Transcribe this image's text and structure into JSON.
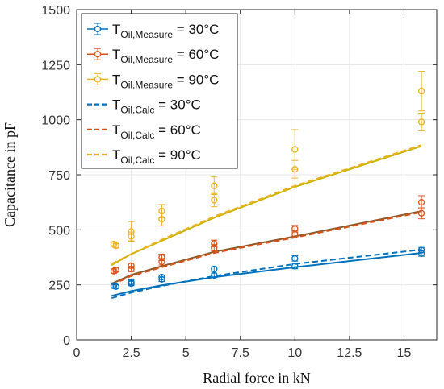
{
  "chart_data": {
    "type": "scatter",
    "xlabel": "Radial force in kN",
    "ylabel": "Capacitance in pF",
    "xlim": [
      0,
      16.5
    ],
    "ylim": [
      0,
      1500
    ],
    "xticks": [
      0,
      2.5,
      5,
      7.5,
      10,
      12.5,
      15
    ],
    "xtick_labels": [
      "0",
      "2.5",
      "5",
      "7.5",
      "10",
      "12.5",
      "15"
    ],
    "yticks": [
      0,
      250,
      500,
      750,
      1000,
      1250,
      1500
    ],
    "ytick_labels": [
      "0",
      "250",
      "500",
      "750",
      "1000",
      "1250",
      "1500"
    ],
    "grid": true,
    "legend_position": "top-left",
    "measure_series": [
      {
        "name_main": "T",
        "name_sub": "Oil,Measure",
        "name_suffix": " = 30°C",
        "color": "#0072BD",
        "points": [
          {
            "x": 1.7,
            "y": 245,
            "err": 8
          },
          {
            "x": 1.8,
            "y": 242,
            "err": 8
          },
          {
            "x": 2.5,
            "y": 262,
            "err": 10
          },
          {
            "x": 2.5,
            "y": 256,
            "err": 10
          },
          {
            "x": 3.9,
            "y": 285,
            "err": 10
          },
          {
            "x": 3.9,
            "y": 275,
            "err": 10
          },
          {
            "x": 6.3,
            "y": 322,
            "err": 10
          },
          {
            "x": 6.3,
            "y": 293,
            "err": 10
          },
          {
            "x": 10.0,
            "y": 370,
            "err": 12
          },
          {
            "x": 10.0,
            "y": 335,
            "err": 12
          },
          {
            "x": 15.8,
            "y": 408,
            "err": 12
          },
          {
            "x": 15.8,
            "y": 392,
            "err": 12
          }
        ]
      },
      {
        "name_main": "T",
        "name_sub": "Oil,Measure",
        "name_suffix": " = 60°C",
        "color": "#D95319",
        "points": [
          {
            "x": 1.7,
            "y": 312,
            "err": 10
          },
          {
            "x": 1.8,
            "y": 318,
            "err": 10
          },
          {
            "x": 2.5,
            "y": 337,
            "err": 12
          },
          {
            "x": 2.5,
            "y": 322,
            "err": 12
          },
          {
            "x": 3.9,
            "y": 375,
            "err": 15
          },
          {
            "x": 3.9,
            "y": 355,
            "err": 15
          },
          {
            "x": 6.3,
            "y": 438,
            "err": 15
          },
          {
            "x": 6.3,
            "y": 418,
            "err": 15
          },
          {
            "x": 10.0,
            "y": 505,
            "err": 15
          },
          {
            "x": 10.0,
            "y": 480,
            "err": 15
          },
          {
            "x": 15.8,
            "y": 625,
            "err": 30
          },
          {
            "x": 15.8,
            "y": 575,
            "err": 25
          }
        ]
      },
      {
        "name_main": "T",
        "name_sub": "Oil,Measure",
        "name_suffix": " = 90°C",
        "color": "#EDB120",
        "points": [
          {
            "x": 1.7,
            "y": 435,
            "err": 10
          },
          {
            "x": 1.8,
            "y": 428,
            "err": 10
          },
          {
            "x": 2.5,
            "y": 492,
            "err": 45
          },
          {
            "x": 2.5,
            "y": 470,
            "err": 20
          },
          {
            "x": 3.9,
            "y": 585,
            "err": 30
          },
          {
            "x": 3.9,
            "y": 548,
            "err": 30
          },
          {
            "x": 6.3,
            "y": 700,
            "err": 40
          },
          {
            "x": 6.3,
            "y": 635,
            "err": 30
          },
          {
            "x": 10.0,
            "y": 865,
            "err": 90
          },
          {
            "x": 10.0,
            "y": 775,
            "err": 40
          },
          {
            "x": 15.8,
            "y": 1130,
            "err": 90
          },
          {
            "x": 15.8,
            "y": 990,
            "err": 40
          }
        ]
      }
    ],
    "calc_series": [
      {
        "name_main": "T",
        "name_sub": "Oil,Calc",
        "name_suffix": " = 30°C",
        "color": "#0072BD",
        "x": [
          1.6,
          2.5,
          3.9,
          6.3,
          10.0,
          15.8
        ],
        "y": [
          190,
          215,
          245,
          290,
          345,
          410
        ]
      },
      {
        "name_main": "T",
        "name_sub": "Oil,Calc",
        "name_suffix": " = 60°C",
        "color": "#D95319",
        "x": [
          1.6,
          2.5,
          3.9,
          6.3,
          10.0,
          15.8
        ],
        "y": [
          250,
          290,
          330,
          395,
          465,
          580
        ]
      },
      {
        "name_main": "T",
        "name_sub": "Oil,Calc",
        "name_suffix": " = 90°C",
        "color": "#EDB120",
        "x": [
          1.6,
          2.5,
          3.9,
          6.3,
          10.0,
          15.8
        ],
        "y": [
          345,
          390,
          455,
          560,
          700,
          885
        ]
      }
    ],
    "fit_series": [
      {
        "color": "#0072BD",
        "x": [
          1.6,
          2.5,
          3.9,
          6.3,
          10.0,
          15.8
        ],
        "y": [
          200,
          222,
          248,
          285,
          330,
          395
        ]
      },
      {
        "color": "#8B5A2B",
        "x": [
          1.6,
          2.5,
          3.9,
          6.3,
          10.0,
          15.8
        ],
        "y": [
          255,
          295,
          335,
          400,
          470,
          585
        ]
      },
      {
        "color": "#C8B400",
        "x": [
          1.6,
          2.5,
          3.9,
          6.3,
          10.0,
          15.8
        ],
        "y": [
          340,
          390,
          450,
          555,
          695,
          880
        ]
      }
    ]
  }
}
